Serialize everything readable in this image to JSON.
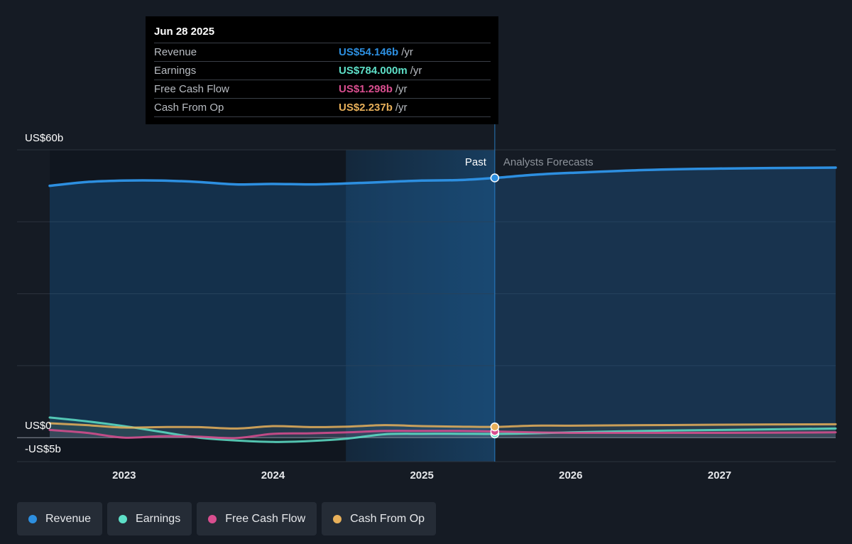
{
  "tooltip": {
    "date": "Jun 28 2025",
    "rows": [
      {
        "label": "Revenue",
        "value": "US$54.146b",
        "unit": "/yr",
        "color": "#2d8fe0"
      },
      {
        "label": "Earnings",
        "value": "US$784.000m",
        "unit": "/yr",
        "color": "#5ee0c8"
      },
      {
        "label": "Free Cash Flow",
        "value": "US$1.298b",
        "unit": "/yr",
        "color": "#d94e8f"
      },
      {
        "label": "Cash From Op",
        "value": "US$2.237b",
        "unit": "/yr",
        "color": "#e8b05a"
      }
    ]
  },
  "region_labels": {
    "past": "Past",
    "forecast": "Analysts Forecasts"
  },
  "legend": [
    {
      "label": "Revenue",
      "color": "#2d8fe0"
    },
    {
      "label": "Earnings",
      "color": "#5ee0c8"
    },
    {
      "label": "Free Cash Flow",
      "color": "#d94e8f"
    },
    {
      "label": "Cash From Op",
      "color": "#e8b05a"
    }
  ],
  "chart_data": {
    "type": "line",
    "y_tick_labels": [
      {
        "value": 60,
        "label": "US$60b"
      },
      {
        "value": 0,
        "label": "US$0"
      },
      {
        "value": -5,
        "label": "-US$5b"
      }
    ],
    "ylim": [
      -5,
      60
    ],
    "xlim": [
      2022.5,
      2027.78
    ],
    "x_ticks": [
      2023,
      2024,
      2025,
      2026,
      2027
    ],
    "x_tick_labels": [
      "2023",
      "2024",
      "2025",
      "2026",
      "2027"
    ],
    "past_end": 2025.49,
    "highlight_start": 2024.49,
    "grid": true,
    "series": [
      {
        "name": "Revenue",
        "color": "#2d8fe0",
        "fill": true,
        "points": [
          [
            2022.5,
            52.5
          ],
          [
            2022.75,
            53.3
          ],
          [
            2023.0,
            53.6
          ],
          [
            2023.25,
            53.6
          ],
          [
            2023.5,
            53.3
          ],
          [
            2023.75,
            52.8
          ],
          [
            2024.0,
            52.9
          ],
          [
            2024.25,
            52.8
          ],
          [
            2024.5,
            53.0
          ],
          [
            2024.75,
            53.3
          ],
          [
            2025.0,
            53.6
          ],
          [
            2025.25,
            53.7
          ],
          [
            2025.49,
            54.15
          ],
          [
            2025.75,
            54.8
          ],
          [
            2026.0,
            55.2
          ],
          [
            2026.5,
            55.8
          ],
          [
            2027.0,
            56.1
          ],
          [
            2027.78,
            56.3
          ]
        ]
      },
      {
        "name": "Earnings",
        "color": "#5ee0c8",
        "fill": false,
        "points": [
          [
            2022.5,
            4.2
          ],
          [
            2022.75,
            3.4
          ],
          [
            2023.0,
            2.4
          ],
          [
            2023.25,
            1.2
          ],
          [
            2023.5,
            0.0
          ],
          [
            2023.75,
            -0.6
          ],
          [
            2024.0,
            -0.9
          ],
          [
            2024.25,
            -0.7
          ],
          [
            2024.5,
            -0.2
          ],
          [
            2024.75,
            0.7
          ],
          [
            2025.0,
            0.8
          ],
          [
            2025.25,
            0.8
          ],
          [
            2025.49,
            0.78
          ],
          [
            2025.75,
            0.9
          ],
          [
            2026.0,
            1.1
          ],
          [
            2026.5,
            1.4
          ],
          [
            2027.0,
            1.6
          ],
          [
            2027.78,
            1.9
          ]
        ]
      },
      {
        "name": "Free Cash Flow",
        "color": "#d94e8f",
        "fill": false,
        "points": [
          [
            2022.5,
            1.6
          ],
          [
            2022.75,
            1.0
          ],
          [
            2023.0,
            0.0
          ],
          [
            2023.25,
            0.3
          ],
          [
            2023.5,
            0.2
          ],
          [
            2023.75,
            -0.1
          ],
          [
            2024.0,
            0.8
          ],
          [
            2024.25,
            0.9
          ],
          [
            2024.5,
            1.1
          ],
          [
            2024.75,
            1.4
          ],
          [
            2025.0,
            1.4
          ],
          [
            2025.25,
            1.4
          ],
          [
            2025.49,
            1.3
          ],
          [
            2025.75,
            1.1
          ],
          [
            2026.0,
            1.0
          ],
          [
            2026.5,
            1.0
          ],
          [
            2027.0,
            1.0
          ],
          [
            2027.78,
            1.1
          ]
        ]
      },
      {
        "name": "Cash From Op",
        "color": "#e8b05a",
        "fill": false,
        "points": [
          [
            2022.5,
            3.0
          ],
          [
            2022.75,
            2.6
          ],
          [
            2023.0,
            2.1
          ],
          [
            2023.25,
            2.2
          ],
          [
            2023.5,
            2.2
          ],
          [
            2023.75,
            1.9
          ],
          [
            2024.0,
            2.4
          ],
          [
            2024.25,
            2.2
          ],
          [
            2024.5,
            2.3
          ],
          [
            2024.75,
            2.6
          ],
          [
            2025.0,
            2.4
          ],
          [
            2025.25,
            2.3
          ],
          [
            2025.49,
            2.24
          ],
          [
            2025.75,
            2.5
          ],
          [
            2026.0,
            2.5
          ],
          [
            2026.5,
            2.6
          ],
          [
            2027.0,
            2.7
          ],
          [
            2027.78,
            2.8
          ]
        ]
      }
    ]
  }
}
